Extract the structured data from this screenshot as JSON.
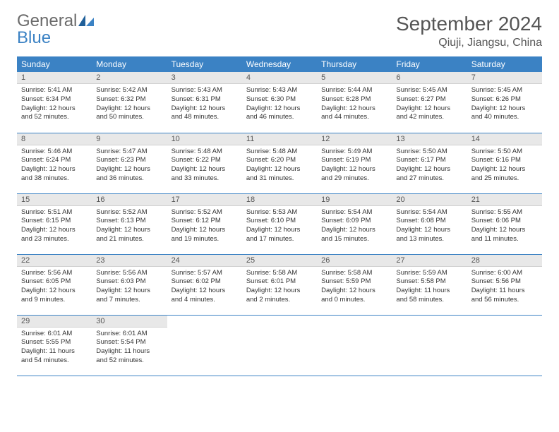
{
  "logo": {
    "word1": "General",
    "word2": "Blue"
  },
  "title": "September 2024",
  "location": "Qiuji, Jiangsu, China",
  "colors": {
    "header_bg": "#3b82c4",
    "header_text": "#ffffff",
    "daynum_bg": "#e8e8e8",
    "row_border": "#3b82c4",
    "body_text": "#333333",
    "title_text": "#555555",
    "logo_gray": "#6b6b6b",
    "logo_blue": "#3b82c4",
    "page_bg": "#ffffff"
  },
  "weekdays": [
    "Sunday",
    "Monday",
    "Tuesday",
    "Wednesday",
    "Thursday",
    "Friday",
    "Saturday"
  ],
  "weeks": [
    [
      {
        "n": "1",
        "sr": "Sunrise: 5:41 AM",
        "ss": "Sunset: 6:34 PM",
        "d1": "Daylight: 12 hours",
        "d2": "and 52 minutes."
      },
      {
        "n": "2",
        "sr": "Sunrise: 5:42 AM",
        "ss": "Sunset: 6:32 PM",
        "d1": "Daylight: 12 hours",
        "d2": "and 50 minutes."
      },
      {
        "n": "3",
        "sr": "Sunrise: 5:43 AM",
        "ss": "Sunset: 6:31 PM",
        "d1": "Daylight: 12 hours",
        "d2": "and 48 minutes."
      },
      {
        "n": "4",
        "sr": "Sunrise: 5:43 AM",
        "ss": "Sunset: 6:30 PM",
        "d1": "Daylight: 12 hours",
        "d2": "and 46 minutes."
      },
      {
        "n": "5",
        "sr": "Sunrise: 5:44 AM",
        "ss": "Sunset: 6:28 PM",
        "d1": "Daylight: 12 hours",
        "d2": "and 44 minutes."
      },
      {
        "n": "6",
        "sr": "Sunrise: 5:45 AM",
        "ss": "Sunset: 6:27 PM",
        "d1": "Daylight: 12 hours",
        "d2": "and 42 minutes."
      },
      {
        "n": "7",
        "sr": "Sunrise: 5:45 AM",
        "ss": "Sunset: 6:26 PM",
        "d1": "Daylight: 12 hours",
        "d2": "and 40 minutes."
      }
    ],
    [
      {
        "n": "8",
        "sr": "Sunrise: 5:46 AM",
        "ss": "Sunset: 6:24 PM",
        "d1": "Daylight: 12 hours",
        "d2": "and 38 minutes."
      },
      {
        "n": "9",
        "sr": "Sunrise: 5:47 AM",
        "ss": "Sunset: 6:23 PM",
        "d1": "Daylight: 12 hours",
        "d2": "and 36 minutes."
      },
      {
        "n": "10",
        "sr": "Sunrise: 5:48 AM",
        "ss": "Sunset: 6:22 PM",
        "d1": "Daylight: 12 hours",
        "d2": "and 33 minutes."
      },
      {
        "n": "11",
        "sr": "Sunrise: 5:48 AM",
        "ss": "Sunset: 6:20 PM",
        "d1": "Daylight: 12 hours",
        "d2": "and 31 minutes."
      },
      {
        "n": "12",
        "sr": "Sunrise: 5:49 AM",
        "ss": "Sunset: 6:19 PM",
        "d1": "Daylight: 12 hours",
        "d2": "and 29 minutes."
      },
      {
        "n": "13",
        "sr": "Sunrise: 5:50 AM",
        "ss": "Sunset: 6:17 PM",
        "d1": "Daylight: 12 hours",
        "d2": "and 27 minutes."
      },
      {
        "n": "14",
        "sr": "Sunrise: 5:50 AM",
        "ss": "Sunset: 6:16 PM",
        "d1": "Daylight: 12 hours",
        "d2": "and 25 minutes."
      }
    ],
    [
      {
        "n": "15",
        "sr": "Sunrise: 5:51 AM",
        "ss": "Sunset: 6:15 PM",
        "d1": "Daylight: 12 hours",
        "d2": "and 23 minutes."
      },
      {
        "n": "16",
        "sr": "Sunrise: 5:52 AM",
        "ss": "Sunset: 6:13 PM",
        "d1": "Daylight: 12 hours",
        "d2": "and 21 minutes."
      },
      {
        "n": "17",
        "sr": "Sunrise: 5:52 AM",
        "ss": "Sunset: 6:12 PM",
        "d1": "Daylight: 12 hours",
        "d2": "and 19 minutes."
      },
      {
        "n": "18",
        "sr": "Sunrise: 5:53 AM",
        "ss": "Sunset: 6:10 PM",
        "d1": "Daylight: 12 hours",
        "d2": "and 17 minutes."
      },
      {
        "n": "19",
        "sr": "Sunrise: 5:54 AM",
        "ss": "Sunset: 6:09 PM",
        "d1": "Daylight: 12 hours",
        "d2": "and 15 minutes."
      },
      {
        "n": "20",
        "sr": "Sunrise: 5:54 AM",
        "ss": "Sunset: 6:08 PM",
        "d1": "Daylight: 12 hours",
        "d2": "and 13 minutes."
      },
      {
        "n": "21",
        "sr": "Sunrise: 5:55 AM",
        "ss": "Sunset: 6:06 PM",
        "d1": "Daylight: 12 hours",
        "d2": "and 11 minutes."
      }
    ],
    [
      {
        "n": "22",
        "sr": "Sunrise: 5:56 AM",
        "ss": "Sunset: 6:05 PM",
        "d1": "Daylight: 12 hours",
        "d2": "and 9 minutes."
      },
      {
        "n": "23",
        "sr": "Sunrise: 5:56 AM",
        "ss": "Sunset: 6:03 PM",
        "d1": "Daylight: 12 hours",
        "d2": "and 7 minutes."
      },
      {
        "n": "24",
        "sr": "Sunrise: 5:57 AM",
        "ss": "Sunset: 6:02 PM",
        "d1": "Daylight: 12 hours",
        "d2": "and 4 minutes."
      },
      {
        "n": "25",
        "sr": "Sunrise: 5:58 AM",
        "ss": "Sunset: 6:01 PM",
        "d1": "Daylight: 12 hours",
        "d2": "and 2 minutes."
      },
      {
        "n": "26",
        "sr": "Sunrise: 5:58 AM",
        "ss": "Sunset: 5:59 PM",
        "d1": "Daylight: 12 hours",
        "d2": "and 0 minutes."
      },
      {
        "n": "27",
        "sr": "Sunrise: 5:59 AM",
        "ss": "Sunset: 5:58 PM",
        "d1": "Daylight: 11 hours",
        "d2": "and 58 minutes."
      },
      {
        "n": "28",
        "sr": "Sunrise: 6:00 AM",
        "ss": "Sunset: 5:56 PM",
        "d1": "Daylight: 11 hours",
        "d2": "and 56 minutes."
      }
    ],
    [
      {
        "n": "29",
        "sr": "Sunrise: 6:01 AM",
        "ss": "Sunset: 5:55 PM",
        "d1": "Daylight: 11 hours",
        "d2": "and 54 minutes."
      },
      {
        "n": "30",
        "sr": "Sunrise: 6:01 AM",
        "ss": "Sunset: 5:54 PM",
        "d1": "Daylight: 11 hours",
        "d2": "and 52 minutes."
      },
      null,
      null,
      null,
      null,
      null
    ]
  ]
}
